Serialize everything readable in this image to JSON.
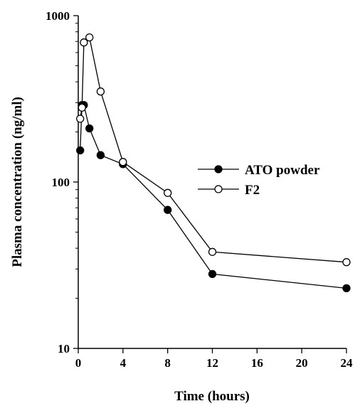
{
  "chart_data": {
    "type": "line",
    "xlabel": "Time (hours)",
    "ylabel": "Plasma concentration (ng/ml)",
    "y_scale": "log",
    "ylim": [
      10,
      1000
    ],
    "xlim": [
      0,
      24
    ],
    "x_ticks": [
      0,
      4,
      8,
      12,
      16,
      20,
      24
    ],
    "y_ticks": [
      10,
      100,
      1000
    ],
    "grid": false,
    "legend_position": "right-center",
    "series": [
      {
        "name": "ATO powder",
        "marker": "filled-circle",
        "x": [
          0.17,
          0.33,
          0.5,
          1,
          2,
          4,
          8,
          12,
          24
        ],
        "y": [
          155,
          290,
          290,
          210,
          145,
          128,
          68,
          28,
          23
        ]
      },
      {
        "name": "F2",
        "marker": "open-circle",
        "x": [
          0.17,
          0.33,
          0.5,
          1,
          2,
          4,
          8,
          12,
          24
        ],
        "y": [
          240,
          280,
          690,
          740,
          350,
          132,
          86,
          38,
          33
        ]
      }
    ]
  }
}
